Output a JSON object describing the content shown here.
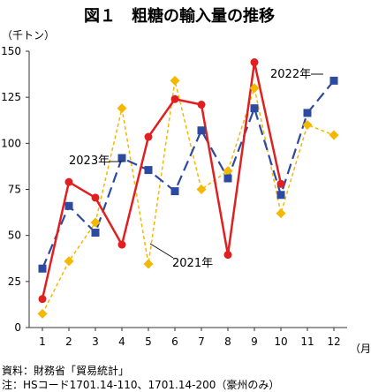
{
  "chart_data": {
    "type": "line",
    "title": "図１　粗糖の輸入量の推移",
    "y_unit": "（千トン）",
    "x_unit": "（月）",
    "categories": [
      "1",
      "2",
      "3",
      "4",
      "5",
      "6",
      "7",
      "8",
      "9",
      "10",
      "11",
      "12"
    ],
    "y_ticks": [
      "0",
      "25",
      "50",
      "75",
      "100",
      "125",
      "150"
    ],
    "ylim": [
      0,
      150
    ],
    "grid": false,
    "series": [
      {
        "name": "2021年",
        "color": "#f5b800",
        "style": "dashed-thin",
        "marker": "diamond",
        "values": [
          7.5,
          36,
          57,
          119,
          34.5,
          134,
          75,
          85,
          130,
          62,
          110,
          104.5
        ]
      },
      {
        "name": "2022年",
        "color": "#2b4aa0",
        "style": "dashed-thick",
        "marker": "square",
        "values": [
          32,
          66,
          51.5,
          92,
          85.5,
          74,
          107,
          81,
          119,
          72,
          116.5,
          134
        ]
      },
      {
        "name": "2023年",
        "color": "#e02020",
        "style": "solid",
        "marker": "circle",
        "values": [
          15.5,
          79,
          70.5,
          45,
          103.5,
          124,
          121,
          39.5,
          144,
          78,
          null,
          null
        ]
      }
    ],
    "annotations": [
      "2023年",
      "2021年",
      "2022年"
    ]
  },
  "source_lines": [
    "資料：財務省「貿易統計」",
    "注：HSコード1701.14-110、1701.14-200（豪州のみ）"
  ]
}
